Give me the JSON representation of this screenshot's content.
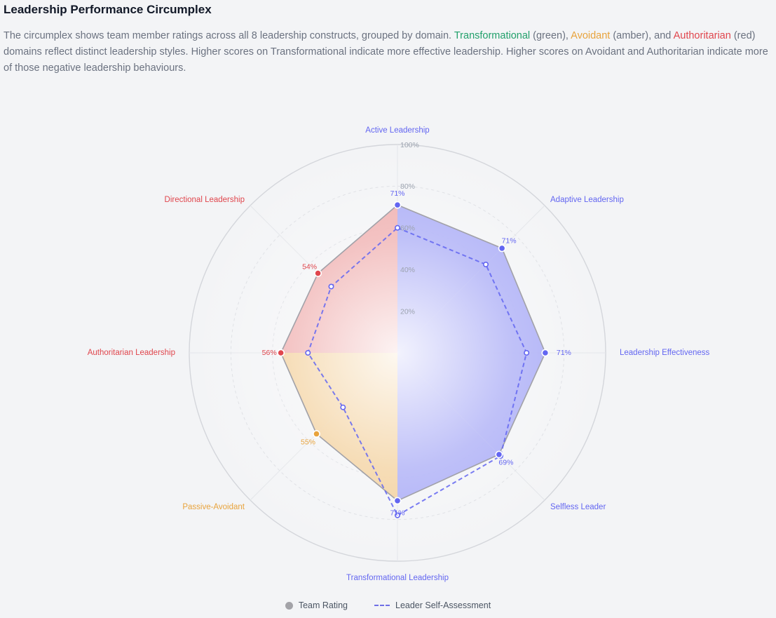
{
  "header": {
    "title": "Leadership Performance Circumplex",
    "desc_pre": "The circumplex shows team member ratings across all 8 leadership constructs, grouped by domain. ",
    "green_word": "Transformational",
    "green_rest": " (green), ",
    "amber_word": "Avoidant",
    "amber_rest": " (amber), and ",
    "red_word": "Authoritarian",
    "desc_post": " (red) domains reflect distinct leadership styles. Higher scores on Transformational indicate more effective leadership. Higher scores on Avoidant and Authoritarian indicate more of those negative leadership behaviours."
  },
  "colors": {
    "transformational": "#6366f1",
    "avoidant": "#e8a33c",
    "authoritarian": "#e0464d",
    "team_fill_blue": "#a5a8f5",
    "team_fill_red": "#eeaaaa",
    "team_fill_amber": "#f2cf99"
  },
  "chart_data": {
    "type": "radar",
    "rlim": [
      0,
      100
    ],
    "ticks": [
      "20%",
      "40%",
      "60%",
      "80%",
      "100%"
    ],
    "tick_values": [
      20,
      40,
      60,
      80,
      100
    ],
    "axes": [
      {
        "label": "Active Leadership",
        "domain": "transformational",
        "team": 71,
        "team_label": "71%",
        "self": 60
      },
      {
        "label": "Adaptive Leadership",
        "domain": "transformational",
        "team": 71,
        "team_label": "71%",
        "self": 60
      },
      {
        "label": "Leadership Effectiveness",
        "domain": "transformational",
        "team": 71,
        "team_label": "71%",
        "self": 62
      },
      {
        "label": "Selfless Leader",
        "domain": "transformational",
        "team": 69,
        "team_label": "69%",
        "self": 70
      },
      {
        "label": "Transformational Leadership",
        "domain": "transformational",
        "team": 71,
        "team_label": "71%",
        "self": 78
      },
      {
        "label": "Passive-Avoidant",
        "domain": "avoidant",
        "team": 55,
        "team_label": "55%",
        "self": 37
      },
      {
        "label": "Authoritarian Leadership",
        "domain": "authoritarian",
        "team": 56,
        "team_label": "56%",
        "self": 43
      },
      {
        "label": "Directional Leadership",
        "domain": "authoritarian",
        "team": 54,
        "team_label": "54%",
        "self": 45
      }
    ],
    "series": [
      {
        "name": "Team Rating",
        "key": "team",
        "style": "filled"
      },
      {
        "name": "Leader Self-Assessment",
        "key": "self",
        "style": "dashed"
      }
    ],
    "legend": "bottom"
  }
}
